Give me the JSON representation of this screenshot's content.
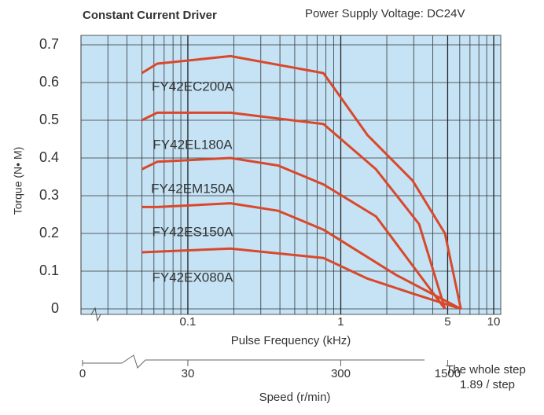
{
  "chart_data": {
    "type": "line",
    "title": "Constant Current Driver",
    "subtitle": "Power Supply Voltage: DC24V",
    "x_label": "Pulse Frequency (kHz)",
    "y_label": "Torque (N• M)",
    "log_x": true,
    "xlim": [
      0.02,
      10
    ],
    "xticks": [
      0.1,
      1,
      5,
      10
    ],
    "ylim": [
      0,
      0.7
    ],
    "yticks": [
      0.7,
      0.6,
      0.5,
      0.4,
      0.3,
      0.2,
      0.1,
      0
    ],
    "grid": true,
    "series": [
      {
        "name": "FY42EC200A",
        "color": "#d9482b",
        "x": [
          0.05,
          0.063,
          0.19,
          0.77,
          1.5,
          2.95,
          4.8,
          6.1
        ],
        "values": [
          0.625,
          0.65,
          0.67,
          0.625,
          0.46,
          0.34,
          0.2,
          0
        ]
      },
      {
        "name": "FY42EL180A",
        "color": "#d9482b",
        "x": [
          0.05,
          0.063,
          0.19,
          0.77,
          1.7,
          3.25,
          4.8
        ],
        "values": [
          0.5,
          0.52,
          0.52,
          0.49,
          0.37,
          0.225,
          0
        ]
      },
      {
        "name": "FY42EM150A",
        "color": "#d9482b",
        "x": [
          0.05,
          0.063,
          0.19,
          0.39,
          0.77,
          1.7,
          4.8
        ],
        "values": [
          0.37,
          0.39,
          0.4,
          0.38,
          0.33,
          0.245,
          0
        ]
      },
      {
        "name": "FY42ES150A",
        "color": "#d9482b",
        "x": [
          0.05,
          0.063,
          0.19,
          0.39,
          0.77,
          2.3,
          6.1
        ],
        "values": [
          0.27,
          0.27,
          0.28,
          0.26,
          0.21,
          0.09,
          0
        ]
      },
      {
        "name": "FY42EX080A",
        "color": "#d9482b",
        "x": [
          0.05,
          0.19,
          0.77,
          1.5,
          2.99,
          6.1
        ],
        "values": [
          0.15,
          0.16,
          0.135,
          0.08,
          0.04,
          0
        ]
      }
    ],
    "speed_axis": {
      "label": "Speed (r/min)",
      "ticks": [
        0,
        30,
        300,
        1500
      ],
      "note": [
        "The whole step",
        "1.89 / step"
      ]
    }
  }
}
